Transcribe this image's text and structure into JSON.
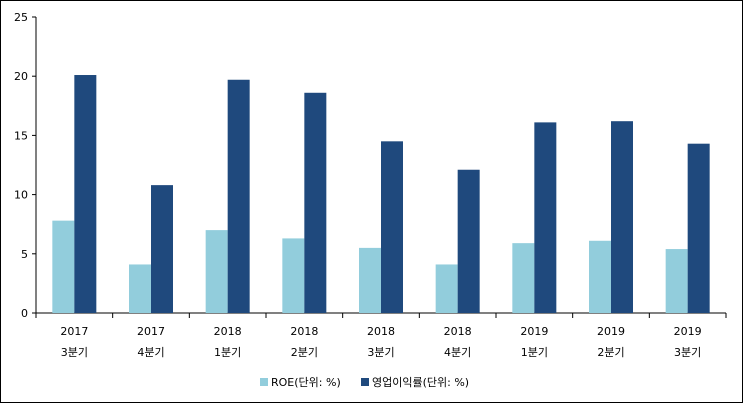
{
  "chart_data": {
    "type": "bar",
    "categories": [
      [
        "2017",
        "3분기"
      ],
      [
        "2017",
        "4분기"
      ],
      [
        "2018",
        "1분기"
      ],
      [
        "2018",
        "2분기"
      ],
      [
        "2018",
        "3분기"
      ],
      [
        "2018",
        "4분기"
      ],
      [
        "2019",
        "1분기"
      ],
      [
        "2019",
        "2분기"
      ],
      [
        "2019",
        "3분기"
      ]
    ],
    "series": [
      {
        "name": "ROE(단위: %)",
        "color": "#92cddc",
        "values": [
          7.8,
          4.1,
          7.0,
          6.3,
          5.5,
          4.1,
          5.9,
          6.1,
          5.4
        ]
      },
      {
        "name": "영업이익률(단위: %)",
        "color": "#1f497d",
        "values": [
          20.1,
          10.8,
          19.7,
          18.6,
          14.5,
          12.1,
          16.1,
          16.2,
          14.3
        ]
      }
    ],
    "ylim": [
      0,
      25
    ],
    "yticks": [
      "0",
      "5",
      "10",
      "15",
      "20",
      "25"
    ],
    "grid": false,
    "legend": "bottom"
  }
}
